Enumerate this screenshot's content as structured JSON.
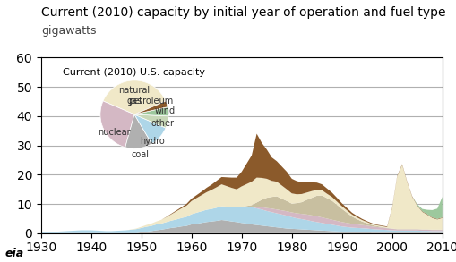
{
  "chart_data": [
    {
      "type": "area",
      "title": "Current (2010) capacity by initial year of operation and fuel type",
      "subtitle": "gigawatts",
      "annotations": [
        "eia"
      ],
      "stacked": true,
      "grid": "y",
      "xlim": [
        1930,
        2010
      ],
      "ylim": [
        0,
        60
      ],
      "xticks": [
        1930,
        1940,
        1950,
        1960,
        1970,
        1980,
        1990,
        2000,
        2010
      ],
      "yticks": [
        0,
        10,
        20,
        30,
        40,
        50,
        60
      ],
      "x": [
        1930,
        1931,
        1932,
        1933,
        1934,
        1935,
        1936,
        1937,
        1938,
        1939,
        1940,
        1941,
        1942,
        1943,
        1944,
        1945,
        1946,
        1947,
        1948,
        1949,
        1950,
        1951,
        1952,
        1953,
        1954,
        1955,
        1956,
        1957,
        1958,
        1959,
        1960,
        1961,
        1962,
        1963,
        1964,
        1965,
        1966,
        1967,
        1968,
        1969,
        1970,
        1971,
        1972,
        1973,
        1974,
        1975,
        1976,
        1977,
        1978,
        1979,
        1980,
        1981,
        1982,
        1983,
        1984,
        1985,
        1986,
        1987,
        1988,
        1989,
        1990,
        1991,
        1992,
        1993,
        1994,
        1995,
        1996,
        1997,
        1998,
        1999,
        2000,
        2001,
        2002,
        2003,
        2004,
        2005,
        2006,
        2007,
        2008,
        2009,
        2010
      ],
      "series": [
        {
          "color": "#b0b0b0",
          "values": [
            0,
            0,
            0,
            0,
            0,
            0,
            0,
            0,
            0,
            0,
            0,
            0,
            0,
            0,
            0,
            0,
            0,
            0,
            0,
            0,
            0.3,
            0.5,
            0.7,
            1.0,
            1.2,
            1.5,
            1.8,
            2.0,
            2.3,
            2.5,
            3.0,
            3.2,
            3.5,
            3.8,
            4.0,
            4.2,
            4.5,
            4.3,
            4.0,
            3.8,
            3.5,
            3.3,
            3.0,
            2.8,
            2.6,
            2.4,
            2.2,
            2.0,
            1.8,
            1.6,
            1.5,
            1.4,
            1.3,
            1.2,
            1.1,
            1.0,
            0.9,
            0.8,
            0.7,
            0.6,
            0.5,
            0.4,
            0.3,
            0.3,
            0.3,
            0.3,
            0.2,
            0.2,
            0.2,
            0.2,
            0.2,
            0.2,
            0.2,
            0.2,
            0.2,
            0.2,
            0.2,
            0.2,
            0.2,
            0.2,
            0.2
          ]
        },
        {
          "color": "#aed6e8",
          "values": [
            0.2,
            0.3,
            0.4,
            0.5,
            0.6,
            0.7,
            0.8,
            0.9,
            1.0,
            1.0,
            1.0,
            0.9,
            0.8,
            0.7,
            0.7,
            0.8,
            0.9,
            1.0,
            1.2,
            1.4,
            1.5,
            1.7,
            1.8,
            2.0,
            2.1,
            2.3,
            2.5,
            2.7,
            2.9,
            3.1,
            3.5,
            3.8,
            4.0,
            4.2,
            4.3,
            4.5,
            4.7,
            4.8,
            5.0,
            5.2,
            5.5,
            5.8,
            5.9,
            5.7,
            5.5,
            5.2,
            5.0,
            4.8,
            4.6,
            4.4,
            4.0,
            3.7,
            3.5,
            3.3,
            3.0,
            2.8,
            2.6,
            2.4,
            2.2,
            2.0,
            1.8,
            1.7,
            1.6,
            1.5,
            1.4,
            1.3,
            1.2,
            1.1,
            1.0,
            0.9,
            0.8,
            0.7,
            0.7,
            0.7,
            0.7,
            0.7,
            0.6,
            0.6,
            0.5,
            0.5,
            0.5
          ]
        },
        {
          "color": "#d4b8c4",
          "values": [
            0,
            0,
            0,
            0,
            0,
            0,
            0,
            0,
            0,
            0,
            0,
            0,
            0,
            0,
            0,
            0,
            0,
            0,
            0,
            0,
            0,
            0,
            0,
            0,
            0,
            0,
            0,
            0,
            0,
            0,
            0,
            0,
            0,
            0,
            0,
            0,
            0,
            0,
            0,
            0,
            0,
            0,
            0.2,
            0.5,
            0.8,
            1.0,
            1.2,
            1.3,
            1.4,
            1.5,
            1.6,
            1.7,
            1.8,
            1.9,
            2.0,
            2.0,
            1.9,
            1.8,
            1.7,
            1.6,
            1.5,
            1.4,
            1.3,
            1.2,
            1.1,
            1.0,
            0.9,
            0.8,
            0.7,
            0.6,
            0.5,
            0.4,
            0.4,
            0.4,
            0.4,
            0.4,
            0.4,
            0.4,
            0.4,
            0.4,
            0.4
          ]
        },
        {
          "color": "#c8bfa0",
          "values": [
            0,
            0,
            0,
            0,
            0,
            0,
            0,
            0,
            0,
            0,
            0,
            0,
            0,
            0,
            0,
            0,
            0,
            0,
            0,
            0,
            0,
            0,
            0,
            0,
            0,
            0,
            0,
            0,
            0,
            0,
            0,
            0,
            0,
            0,
            0,
            0,
            0,
            0,
            0,
            0,
            0,
            0.2,
            0.5,
            1.5,
            2.5,
            3.5,
            4.0,
            4.5,
            4.0,
            3.5,
            3.0,
            3.5,
            4.0,
            5.0,
            6.0,
            7.0,
            7.5,
            7.0,
            6.5,
            5.5,
            4.5,
            3.5,
            2.5,
            1.8,
            1.2,
            0.8,
            0.5,
            0.3,
            0.2,
            0.1,
            0.1,
            0.1,
            0.1,
            0.1,
            0.1,
            0.1,
            0.1,
            0.1,
            0.1,
            0.1,
            0.1
          ]
        },
        {
          "color": "#f0e8c8",
          "values": [
            0,
            0,
            0,
            0,
            0,
            0,
            0,
            0,
            0,
            0,
            0,
            0,
            0,
            0,
            0,
            0,
            0,
            0,
            0.1,
            0.2,
            0.4,
            0.6,
            0.8,
            1.0,
            1.3,
            1.7,
            2.2,
            2.8,
            3.3,
            3.8,
            4.5,
            5.0,
            5.5,
            6.0,
            6.5,
            7.0,
            7.5,
            7.0,
            6.5,
            6.0,
            7.0,
            7.5,
            8.0,
            8.5,
            7.5,
            6.5,
            5.5,
            5.0,
            4.5,
            4.0,
            3.5,
            3.0,
            2.8,
            2.5,
            2.3,
            2.0,
            1.8,
            1.5,
            1.3,
            1.1,
            0.9,
            0.8,
            0.7,
            0.6,
            0.5,
            0.4,
            0.3,
            0.3,
            0.3,
            0.3,
            7.0,
            18.0,
            22.0,
            16.0,
            11.0,
            8.0,
            6.0,
            5.0,
            4.0,
            3.5,
            4.0
          ]
        },
        {
          "color": "#8B5A2B",
          "values": [
            0,
            0,
            0,
            0,
            0,
            0,
            0,
            0,
            0,
            0,
            0,
            0,
            0,
            0,
            0,
            0,
            0,
            0,
            0,
            0,
            0,
            0,
            0,
            0,
            0,
            0.1,
            0.2,
            0.3,
            0.4,
            0.6,
            0.8,
            1.0,
            1.2,
            1.5,
            1.8,
            2.2,
            2.5,
            3.0,
            3.5,
            4.0,
            5.0,
            7.0,
            9.0,
            15.0,
            12.0,
            10.0,
            8.0,
            7.0,
            6.5,
            6.0,
            5.0,
            4.5,
            4.0,
            3.5,
            3.0,
            2.5,
            2.0,
            1.8,
            1.5,
            1.3,
            1.0,
            0.8,
            0.6,
            0.5,
            0.4,
            0.3,
            0.3,
            0.2,
            0.2,
            0.2,
            0.2,
            0.2,
            0.2,
            0.2,
            0.2,
            0.2,
            0.2,
            0.2,
            0.2,
            0.2,
            0.2
          ]
        },
        {
          "color": "#9dc89d",
          "values": [
            0,
            0,
            0,
            0,
            0,
            0,
            0,
            0,
            0,
            0,
            0,
            0,
            0,
            0,
            0,
            0,
            0,
            0,
            0,
            0,
            0,
            0,
            0,
            0,
            0,
            0,
            0,
            0,
            0,
            0,
            0,
            0,
            0,
            0,
            0,
            0,
            0,
            0,
            0,
            0,
            0,
            0,
            0,
            0,
            0,
            0,
            0,
            0,
            0,
            0,
            0,
            0,
            0,
            0,
            0,
            0,
            0,
            0,
            0,
            0,
            0,
            0,
            0,
            0,
            0,
            0,
            0,
            0,
            0,
            0,
            0,
            0,
            0,
            0,
            0,
            0.3,
            0.8,
            1.5,
            2.5,
            3.5,
            7.0
          ]
        }
      ]
    },
    {
      "type": "pie",
      "title": "Current (2010) U.S. capacity",
      "categories": [
        "natural\ngas",
        "nuclear",
        "coal",
        "hydro",
        "other",
        "wind",
        "petroleum"
      ],
      "values": [
        26,
        19,
        9,
        7,
        4,
        3,
        2
      ],
      "colors": [
        "#f0e8c8",
        "#d4b8c4",
        "#b0b0b0",
        "#aed6e8",
        "#c8d8b8",
        "#9dc89d",
        "#8B5A2B"
      ]
    }
  ]
}
